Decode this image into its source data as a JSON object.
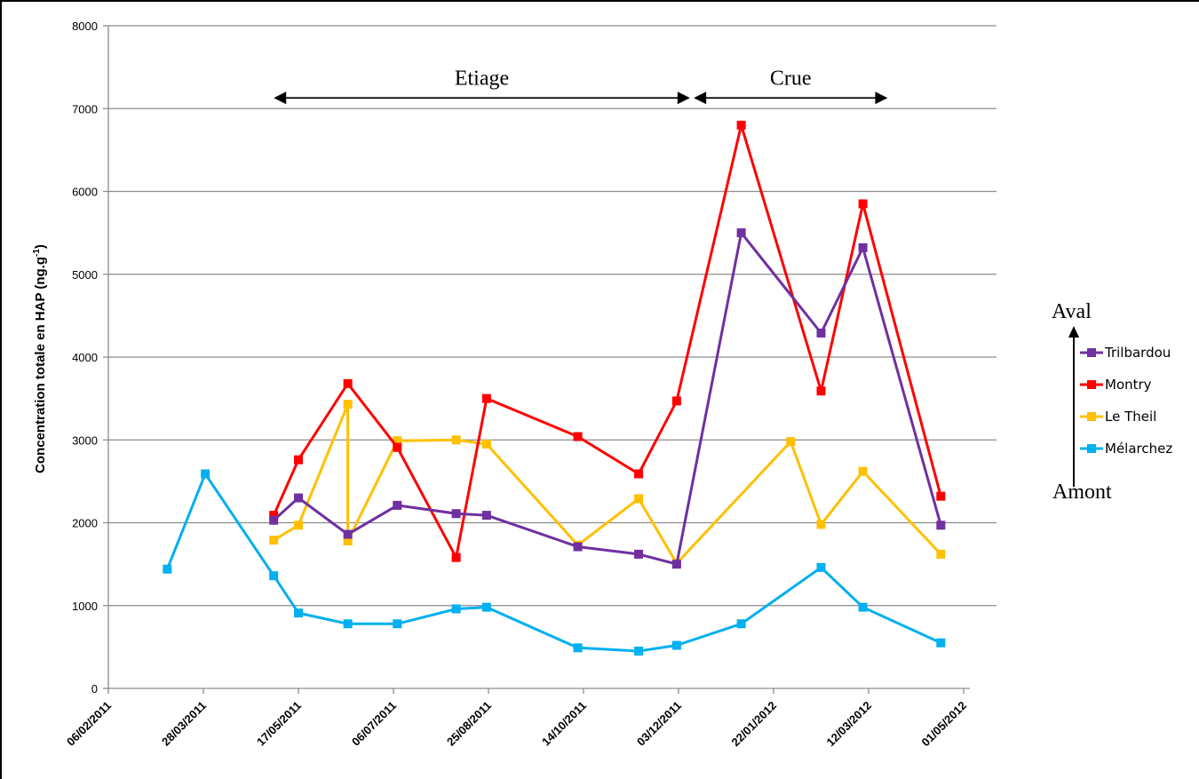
{
  "chart_data": {
    "type": "line",
    "ylabel": "Concentration totale en HAP (ng.g",
    "ylabel_sup": "-1",
    "ylabel_end": ")",
    "ylim": [
      0,
      8000
    ],
    "yticks": [
      0,
      1000,
      2000,
      3000,
      4000,
      5000,
      6000,
      7000,
      8000
    ],
    "xticks": [
      "06/02/2011",
      "28/03/2011",
      "17/05/2011",
      "06/07/2011",
      "25/08/2011",
      "14/10/2011",
      "03/12/2011",
      "22/01/2012",
      "12/03/2012",
      "01/05/2012"
    ],
    "grid": true,
    "legend_position": "right",
    "series": [
      {
        "name": "Trilbardou",
        "color": "#7030A0",
        "x": [
          "2011-05-04",
          "2011-05-17",
          "2011-06-12",
          "2011-07-08",
          "2011-08-08",
          "2011-08-24",
          "2011-10-11",
          "2011-11-12",
          "2011-12-02",
          "2012-01-05",
          "2012-02-16",
          "2012-03-09",
          "2012-04-19"
        ],
        "y": [
          2030,
          2300,
          1860,
          2210,
          2110,
          2090,
          1710,
          1620,
          1500,
          5500,
          4290,
          5320,
          1970
        ]
      },
      {
        "name": "Montry",
        "color": "#FF0000",
        "x": [
          "2011-05-04",
          "2011-05-17",
          "2011-06-12",
          "2011-07-08",
          "2011-08-08",
          "2011-08-24",
          "2011-10-11",
          "2011-11-12",
          "2011-12-02",
          "2012-01-05",
          "2012-02-16",
          "2012-03-09",
          "2012-04-19"
        ],
        "y": [
          2090,
          2760,
          3680,
          2910,
          1580,
          3500,
          3040,
          2590,
          3470,
          6800,
          3590,
          5850,
          2320
        ]
      },
      {
        "name": "Le Theil",
        "color": "#FFC000",
        "x": [
          "2011-05-04",
          "2011-05-17",
          "2011-06-12",
          "2011-06-12",
          "2011-07-08",
          "2011-08-08",
          "2011-08-24",
          "2011-10-11",
          "2011-11-12",
          "2011-12-02",
          "2012-01-31",
          "2012-02-16",
          "2012-03-09",
          "2012-04-19"
        ],
        "y": [
          1790,
          1970,
          3430,
          1780,
          2990,
          3000,
          2950,
          1730,
          2290,
          1510,
          2980,
          1980,
          2620,
          1620
        ]
      },
      {
        "name": "Mélarchez",
        "color": "#00B0F0",
        "x": [
          "2011-03-09",
          "2011-03-29",
          "2011-05-04",
          "2011-05-17",
          "2011-06-12",
          "2011-07-08",
          "2011-08-08",
          "2011-08-24",
          "2011-10-11",
          "2011-11-12",
          "2011-12-02",
          "2012-01-05",
          "2012-02-16",
          "2012-03-09",
          "2012-04-19"
        ],
        "y": [
          1440,
          2590,
          1360,
          910,
          780,
          780,
          960,
          980,
          490,
          450,
          520,
          780,
          1460,
          980,
          550
        ]
      }
    ],
    "annotations": [
      {
        "text": "Etiage",
        "from": "2011-05-04",
        "to": "2011-12-09",
        "level": 7000
      },
      {
        "text": "Crue",
        "from": "2011-12-11",
        "to": "2012-03-22",
        "level": 7000
      }
    ],
    "legend_axis": {
      "top": "Aval",
      "bottom": "Amont"
    }
  }
}
